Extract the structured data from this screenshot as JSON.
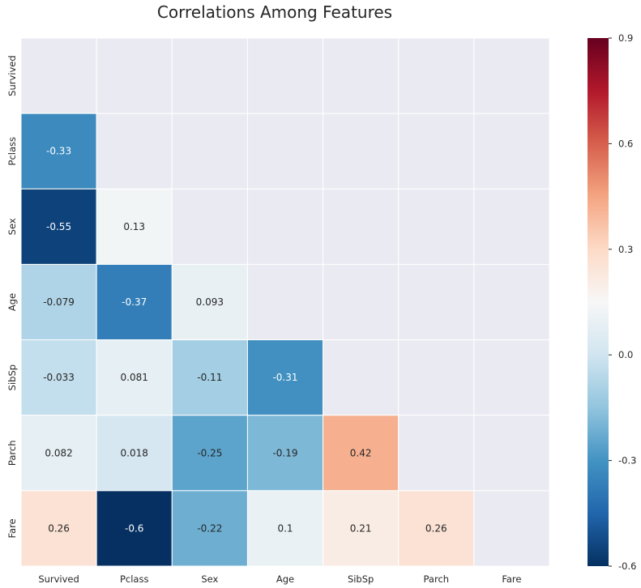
{
  "chart_data": {
    "type": "heatmap",
    "title": "Correlations Among Features",
    "xlabel": "",
    "ylabel": "",
    "labels": [
      "Survived",
      "Pclass",
      "Sex",
      "Age",
      "SibSp",
      "Parch",
      "Fare"
    ],
    "mask": "upper-triangle-and-diagonal",
    "matrix": [
      [
        null,
        null,
        null,
        null,
        null,
        null,
        null
      ],
      [
        -0.33,
        null,
        null,
        null,
        null,
        null,
        null
      ],
      [
        -0.55,
        0.13,
        null,
        null,
        null,
        null,
        null
      ],
      [
        -0.079,
        -0.37,
        0.093,
        null,
        null,
        null,
        null
      ],
      [
        -0.033,
        0.081,
        -0.11,
        -0.31,
        null,
        null,
        null
      ],
      [
        0.082,
        0.018,
        -0.25,
        -0.19,
        0.42,
        null,
        null
      ],
      [
        0.26,
        -0.6,
        -0.22,
        0.1,
        0.21,
        0.26,
        null
      ]
    ],
    "value_labels": [
      [
        "",
        "",
        "",
        "",
        "",
        "",
        ""
      ],
      [
        "-0.33",
        "",
        "",
        "",
        "",
        "",
        ""
      ],
      [
        "-0.55",
        "0.13",
        "",
        "",
        "",
        "",
        ""
      ],
      [
        "-0.079",
        "-0.37",
        "0.093",
        "",
        "",
        "",
        ""
      ],
      [
        "-0.033",
        "0.081",
        "-0.11",
        "-0.31",
        "",
        "",
        ""
      ],
      [
        "0.082",
        "0.018",
        "-0.25",
        "-0.19",
        "0.42",
        "",
        ""
      ],
      [
        "0.26",
        "-0.6",
        "-0.22",
        "0.1",
        "0.21",
        "0.26",
        ""
      ]
    ],
    "colorbar": {
      "colormap": "RdBu_r",
      "range": [
        -0.6,
        0.9
      ],
      "ticks": [
        -0.6,
        -0.3,
        0.0,
        0.3,
        0.6,
        0.9
      ],
      "tick_labels": [
        "-0.6",
        "-0.3",
        "0.0",
        "0.3",
        "0.6",
        "0.9"
      ]
    },
    "colors": {
      "masked_cell": "#eaeaf2",
      "grid_line": "#ffffff",
      "text_dark": "#262626",
      "text_light": "#ffffff"
    }
  }
}
